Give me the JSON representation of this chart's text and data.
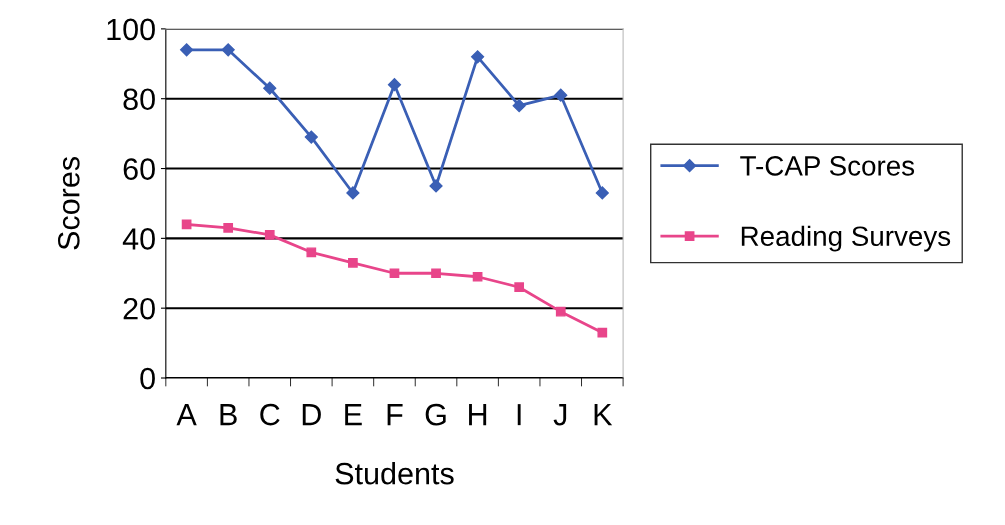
{
  "chart_data": {
    "type": "line",
    "xlabel": "Students",
    "ylabel": "Scores",
    "categories": [
      "A",
      "B",
      "C",
      "D",
      "E",
      "F",
      "G",
      "H",
      "I",
      "J",
      "K"
    ],
    "series": [
      {
        "name": "T-CAP Scores",
        "color": "#3a5fb5",
        "marker": "diamond",
        "values": [
          94,
          94,
          83,
          69,
          53,
          84,
          55,
          92,
          78,
          81,
          53
        ]
      },
      {
        "name": "Reading Surveys",
        "color": "#e8458a",
        "marker": "square",
        "values": [
          44,
          43,
          41,
          36,
          33,
          30,
          30,
          29,
          26,
          19,
          13
        ]
      }
    ],
    "ylim": [
      0,
      100
    ],
    "yticks": [
      0,
      20,
      40,
      60,
      80,
      100
    ],
    "grid": "y",
    "legend": "right",
    "line_style": "solid"
  }
}
